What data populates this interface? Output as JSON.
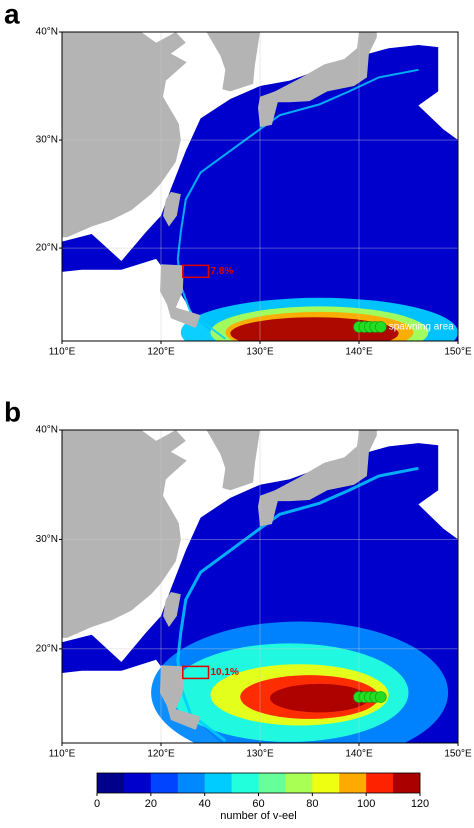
{
  "panels": [
    {
      "label": "a",
      "region_label": "7.8%",
      "marker_label": "spawning area"
    },
    {
      "label": "b",
      "region_label": "10.1%"
    }
  ],
  "map": {
    "xlim": [
      110,
      150
    ],
    "ylim": [
      11.4,
      40
    ],
    "xticks": [
      {
        "value": 110,
        "label": "110°E"
      },
      {
        "value": 120,
        "label": "120°E"
      },
      {
        "value": 130,
        "label": "130°E"
      },
      {
        "value": 140,
        "label": "140°E"
      },
      {
        "value": 150,
        "label": "150°E"
      }
    ],
    "yticks": [
      {
        "value": 20,
        "label": "20°N"
      },
      {
        "value": 30,
        "label": "30°N"
      },
      {
        "value": 40,
        "label": "40°N"
      }
    ],
    "land_color": "#b4b4b4",
    "grid": true
  },
  "colorbar": {
    "lim": [
      0,
      120
    ],
    "ticks": [
      0,
      20,
      40,
      60,
      80,
      100,
      120
    ],
    "colors": [
      "#00008b",
      "#0000cd",
      "#0044ff",
      "#0088ff",
      "#00ccff",
      "#22ffdd",
      "#66ff99",
      "#aaff55",
      "#eeff11",
      "#ffaa00",
      "#ff2200",
      "#aa0000"
    ],
    "label": "number of v-eel"
  }
}
